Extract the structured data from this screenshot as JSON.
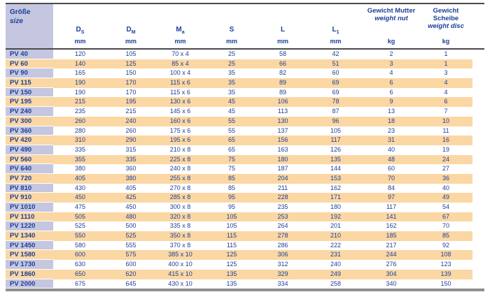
{
  "colors": {
    "navy_text": "#1d3f97",
    "lavender_cell": "#c5c6e0",
    "peach_row": "#fbd7a3",
    "border_dark": "#4a4a4a",
    "border_bottom_gray": "#8f8f8f",
    "row_white": "#ffffff"
  },
  "table": {
    "size_header": {
      "de": "Größe",
      "en": "size"
    },
    "columns": [
      {
        "symbol": "D",
        "sub": "S",
        "unit": "mm"
      },
      {
        "symbol": "D",
        "sub": "M",
        "unit": "mm"
      },
      {
        "symbol": "M",
        "sub": "a",
        "unit": "mm"
      },
      {
        "symbol": "S",
        "sub": "",
        "unit": "mm"
      },
      {
        "symbol": "L",
        "sub": "",
        "unit": "mm"
      },
      {
        "symbol": "L",
        "sub": "1",
        "unit": "mm"
      }
    ],
    "weight_columns": [
      {
        "de": "Gewicht Mutter",
        "en": "weight nut",
        "unit": "kg"
      },
      {
        "de": "Gewicht Scheibe",
        "en": "weight disc",
        "unit": "kg"
      }
    ],
    "rows": [
      {
        "size": "PV 40",
        "values": [
          "120",
          "105",
          "70 x 4",
          "25",
          "58",
          "42",
          "2",
          "1"
        ]
      },
      {
        "size": "PV 60",
        "values": [
          "140",
          "125",
          "85 x 4",
          "25",
          "66",
          "51",
          "3",
          "1"
        ]
      },
      {
        "size": "PV 90",
        "values": [
          "165",
          "150",
          "100 x 4",
          "35",
          "82",
          "60",
          "4",
          "3"
        ]
      },
      {
        "size": "PV 115",
        "values": [
          "190",
          "170",
          "115 x 6",
          "35",
          "89",
          "69",
          "6",
          "4"
        ]
      },
      {
        "size": "PV 150",
        "values": [
          "190",
          "170",
          "115 x 6",
          "35",
          "89",
          "69",
          "6",
          "4"
        ]
      },
      {
        "size": "PV 195",
        "values": [
          "215",
          "195",
          "130 x 6",
          "45",
          "106",
          "78",
          "9",
          "6"
        ]
      },
      {
        "size": "PV 240",
        "values": [
          "235",
          "215",
          "145 x 6",
          "45",
          "113",
          "87",
          "13",
          "7"
        ]
      },
      {
        "size": "PV 300",
        "values": [
          "260",
          "240",
          "160 x 6",
          "55",
          "130",
          "96",
          "18",
          "10"
        ]
      },
      {
        "size": "PV 360",
        "values": [
          "280",
          "260",
          "175 x 6",
          "55",
          "137",
          "105",
          "23",
          "11"
        ]
      },
      {
        "size": "PV 420",
        "values": [
          "310",
          "290",
          "195 x 6",
          "65",
          "156",
          "117",
          "31",
          "16"
        ]
      },
      {
        "size": "PV 490",
        "values": [
          "335",
          "315",
          "210 x 8",
          "65",
          "163",
          "126",
          "40",
          "19"
        ]
      },
      {
        "size": "PV 560",
        "values": [
          "355",
          "335",
          "225 x 8",
          "75",
          "180",
          "135",
          "48",
          "24"
        ]
      },
      {
        "size": "PV 640",
        "values": [
          "380",
          "360",
          "240 x 8",
          "75",
          "187",
          "144",
          "60",
          "27"
        ]
      },
      {
        "size": "PV 720",
        "values": [
          "405",
          "380",
          "255 x 8",
          "85",
          "204",
          "153",
          "70",
          "36"
        ]
      },
      {
        "size": "PV 810",
        "values": [
          "430",
          "405",
          "270 x 8",
          "85",
          "211",
          "162",
          "84",
          "40"
        ]
      },
      {
        "size": "PV 910",
        "values": [
          "450",
          "425",
          "285 x 8",
          "95",
          "228",
          "171",
          "97",
          "49"
        ]
      },
      {
        "size": "PV 1010",
        "values": [
          "475",
          "450",
          "300 x 8",
          "95",
          "235",
          "180",
          "117",
          "54"
        ]
      },
      {
        "size": "PV 1110",
        "values": [
          "505",
          "480",
          "320 x 8",
          "105",
          "253",
          "192",
          "141",
          "67"
        ]
      },
      {
        "size": "PV 1220",
        "values": [
          "525",
          "500",
          "335 x 8",
          "105",
          "264",
          "201",
          "162",
          "70"
        ]
      },
      {
        "size": "PV 1340",
        "values": [
          "550",
          "525",
          "350 x 8",
          "115",
          "278",
          "210",
          "185",
          "85"
        ]
      },
      {
        "size": "PV 1450",
        "values": [
          "580",
          "555",
          "370 x 8",
          "115",
          "286",
          "222",
          "217",
          "92"
        ]
      },
      {
        "size": "PV 1580",
        "values": [
          "600",
          "575",
          "385 x 10",
          "125",
          "306",
          "231",
          "244",
          "108"
        ]
      },
      {
        "size": "PV 1730",
        "values": [
          "630",
          "600",
          "400 x 10",
          "125",
          "312",
          "240",
          "276",
          "123"
        ]
      },
      {
        "size": "PV 1860",
        "values": [
          "650",
          "620",
          "415 x 10",
          "135",
          "329",
          "249",
          "304",
          "139"
        ]
      },
      {
        "size": "PV 2000",
        "values": [
          "675",
          "645",
          "430 x 10",
          "135",
          "334",
          "258",
          "340",
          "150"
        ]
      }
    ]
  }
}
